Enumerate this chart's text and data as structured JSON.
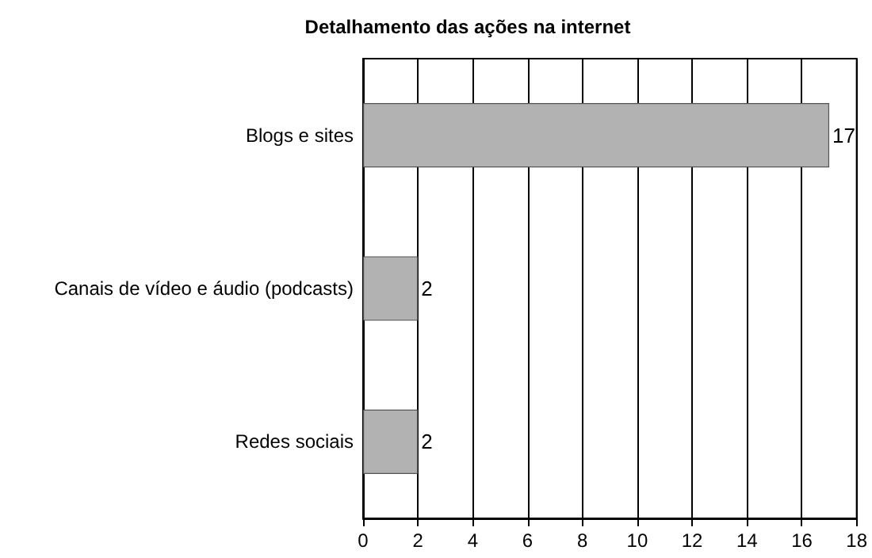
{
  "chart_data": {
    "type": "bar",
    "orientation": "horizontal",
    "title": "Detalhamento das ações na internet",
    "categories": [
      "Blogs e sites",
      "Canais de vídeo e áudio (podcasts)",
      "Redes sociais"
    ],
    "values": [
      17,
      2,
      2
    ],
    "color": "#b2b2b2",
    "xlim": [
      0,
      18
    ],
    "xticks": [
      0,
      2,
      4,
      6,
      8,
      10,
      12,
      14,
      16,
      18
    ],
    "grid": "x",
    "data_labels": true
  }
}
